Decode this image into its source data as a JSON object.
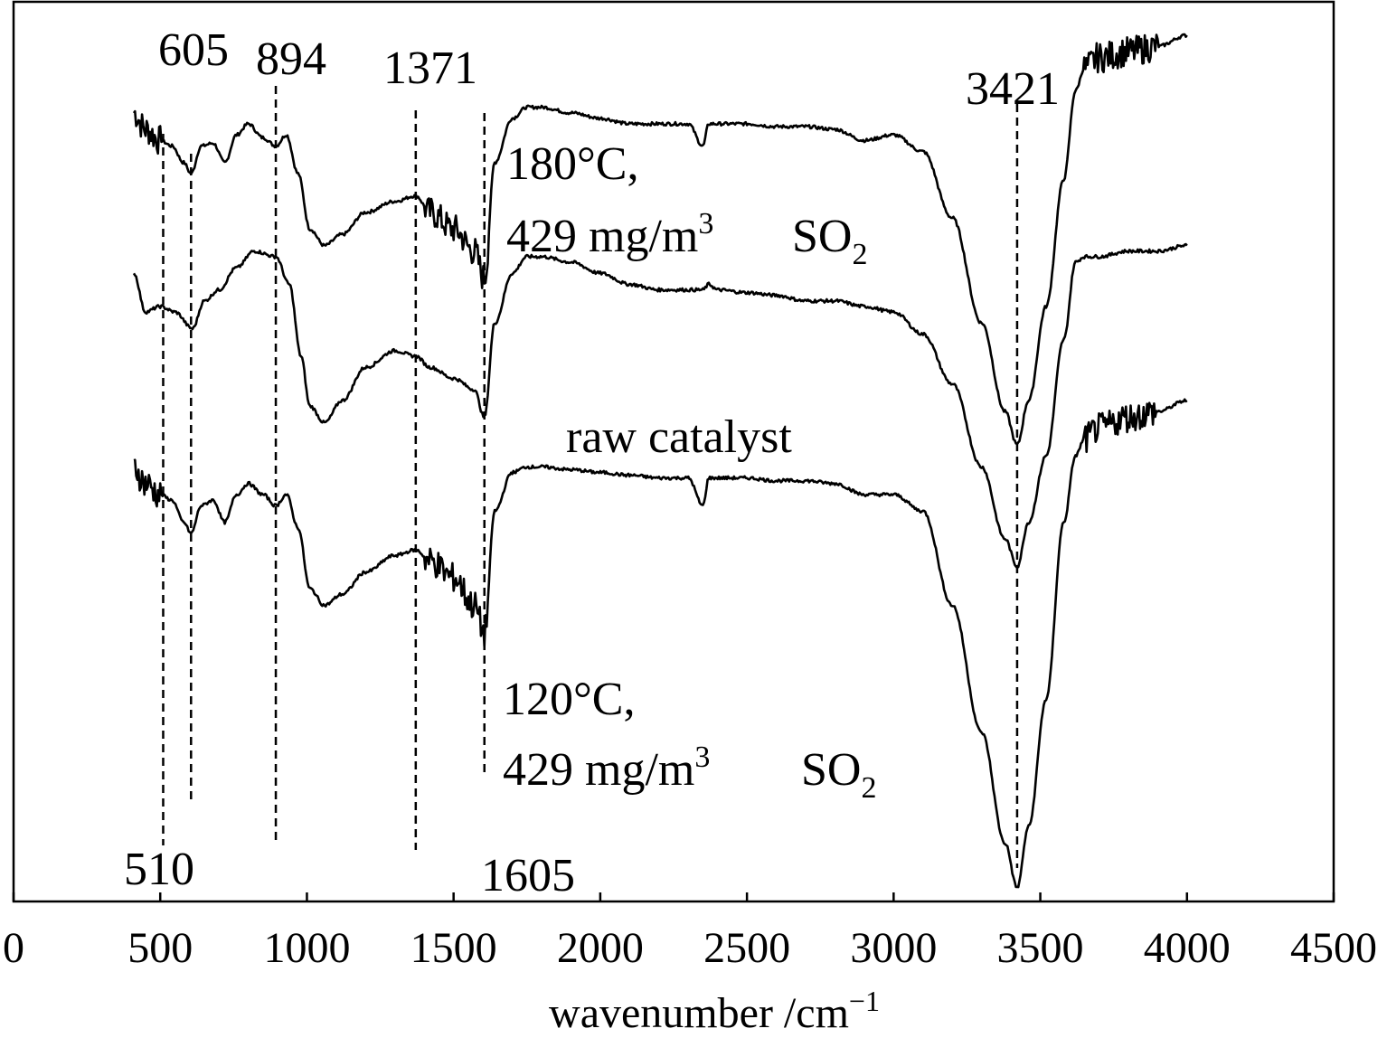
{
  "chart_data": {
    "type": "line",
    "title": "",
    "xlabel": "wavenumber /cm",
    "xlabel_superscript": "−1",
    "ylabel": "",
    "xlim": [
      0,
      4500
    ],
    "x_ticks": [
      0,
      500,
      1000,
      1500,
      2000,
      2500,
      3000,
      3500,
      4000,
      4500
    ],
    "y_ticks_shown": false,
    "grid": false,
    "legend": "none",
    "peak_markers": [
      {
        "x": 510,
        "label": "510",
        "label_position": "bottom"
      },
      {
        "x": 605,
        "label": "605",
        "label_position": "top"
      },
      {
        "x": 894,
        "label": "894",
        "label_position": "top"
      },
      {
        "x": 1371,
        "label": "1371",
        "label_position": "top"
      },
      {
        "x": 1605,
        "label": "1605",
        "label_position": "bottom"
      },
      {
        "x": 3421,
        "label": "3421",
        "label_position": "top"
      }
    ],
    "series": [
      {
        "annotation_line1": "180°C,",
        "annotation_line2_prefix": "429 mg/m",
        "annotation_line2_superscript": "3",
        "annotation_line2_suffix": "SO",
        "annotation_line2_subscript": "2",
        "x": [
          410,
          450,
          500,
          540,
          580,
          605,
          640,
          680,
          720,
          760,
          800,
          850,
          894,
          930,
          970,
          1010,
          1060,
          1120,
          1200,
          1300,
          1371,
          1420,
          1500,
          1570,
          1605,
          1640,
          1700,
          1750,
          1800,
          1900,
          2000,
          2100,
          2200,
          2300,
          2350,
          2370,
          2400,
          2500,
          2600,
          2700,
          2800,
          2900,
          3000,
          3100,
          3200,
          3300,
          3380,
          3421,
          3460,
          3520,
          3580,
          3620,
          3650,
          3700,
          3800,
          3900,
          4000
        ],
        "y": [
          9.4,
          9.1,
          8.9,
          8.8,
          8.5,
          8.3,
          8.8,
          8.85,
          8.5,
          9.0,
          9.2,
          8.95,
          8.8,
          9.0,
          8.3,
          7.3,
          7.0,
          7.2,
          7.6,
          7.8,
          7.9,
          7.6,
          7.3,
          6.9,
          6.4,
          8.5,
          9.3,
          9.5,
          9.5,
          9.4,
          9.3,
          9.2,
          9.2,
          9.2,
          8.8,
          9.2,
          9.2,
          9.2,
          9.15,
          9.15,
          9.1,
          8.9,
          9.0,
          8.7,
          7.5,
          5.6,
          4.0,
          3.4,
          4.2,
          5.9,
          8.2,
          9.8,
          10.2,
          10.4,
          10.5,
          10.6,
          10.8
        ],
        "noise_regions": [
          [
            410,
            500
          ],
          [
            1400,
            1620
          ],
          [
            3650,
            3900
          ]
        ]
      },
      {
        "annotation": "raw catalyst",
        "x": [
          410,
          450,
          500,
          550,
          610,
          650,
          700,
          760,
          820,
          894,
          940,
          980,
          1010,
          1060,
          1120,
          1200,
          1300,
          1371,
          1420,
          1500,
          1570,
          1605,
          1640,
          1700,
          1750,
          1800,
          1900,
          2000,
          2100,
          2200,
          2300,
          2350,
          2370,
          2400,
          2500,
          2600,
          2700,
          2800,
          2900,
          3000,
          3100,
          3200,
          3300,
          3380,
          3421,
          3460,
          3520,
          3580,
          3620,
          3650,
          3700,
          3800,
          3900,
          4000
        ],
        "y": [
          6.5,
          5.8,
          5.9,
          5.8,
          5.5,
          6.0,
          6.2,
          6.6,
          6.9,
          6.8,
          6.3,
          5.0,
          4.1,
          3.8,
          4.2,
          4.8,
          5.1,
          5.0,
          4.8,
          4.6,
          4.4,
          3.9,
          5.6,
          6.5,
          6.8,
          6.8,
          6.7,
          6.5,
          6.3,
          6.2,
          6.2,
          6.2,
          6.3,
          6.2,
          6.15,
          6.1,
          6.0,
          6.0,
          5.9,
          5.8,
          5.4,
          4.5,
          3.0,
          1.7,
          1.2,
          2.0,
          3.2,
          5.3,
          6.7,
          6.8,
          6.8,
          6.9,
          6.9,
          7.0
        ],
        "noise_regions": []
      },
      {
        "annotation_line1": "120°C,",
        "annotation_line2_prefix": "429 mg/m",
        "annotation_line2_superscript": "3",
        "annotation_line2_suffix": "SO",
        "annotation_line2_subscript": "2",
        "x": [
          410,
          450,
          500,
          540,
          580,
          605,
          640,
          680,
          720,
          760,
          800,
          850,
          894,
          930,
          970,
          1010,
          1060,
          1120,
          1200,
          1300,
          1371,
          1420,
          1500,
          1570,
          1605,
          1640,
          1700,
          1750,
          1800,
          1900,
          2000,
          2100,
          2200,
          2300,
          2350,
          2370,
          2400,
          2500,
          2600,
          2700,
          2800,
          2900,
          3000,
          3100,
          3200,
          3300,
          3380,
          3421,
          3460,
          3520,
          3580,
          3620,
          3650,
          3700,
          3800,
          3900,
          4000
        ],
        "y": [
          3.0,
          2.7,
          2.5,
          2.4,
          2.0,
          1.8,
          2.3,
          2.4,
          2.0,
          2.5,
          2.7,
          2.5,
          2.3,
          2.5,
          1.9,
          0.8,
          0.5,
          0.7,
          1.1,
          1.4,
          1.5,
          1.3,
          1.0,
          0.5,
          0.0,
          2.2,
          2.9,
          3.0,
          3.0,
          2.95,
          2.9,
          2.85,
          2.8,
          2.8,
          2.3,
          2.8,
          2.8,
          2.8,
          2.75,
          2.75,
          2.7,
          2.5,
          2.5,
          2.2,
          0.5,
          -1.8,
          -3.8,
          -4.6,
          -3.5,
          -1.2,
          2.0,
          3.2,
          3.5,
          3.7,
          3.9,
          4.0,
          4.2
        ],
        "noise_regions": [
          [
            410,
            500
          ],
          [
            1400,
            1620
          ],
          [
            3650,
            3900
          ]
        ]
      }
    ]
  }
}
